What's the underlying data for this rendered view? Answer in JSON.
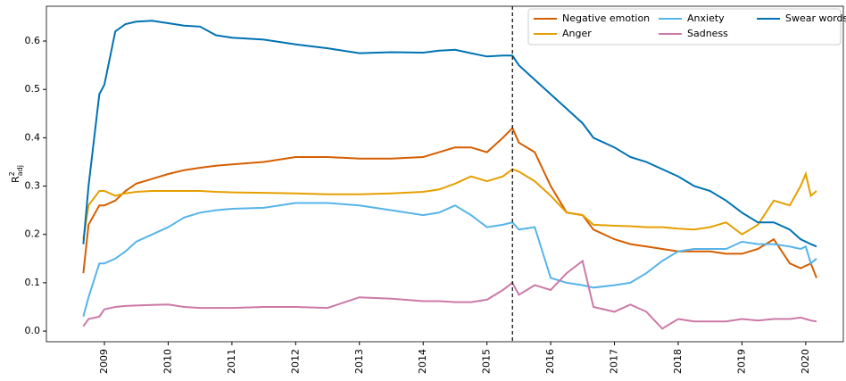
{
  "chart_data": {
    "type": "line",
    "ylabel": {
      "base": "R",
      "sup": "2",
      "sub": "adj"
    },
    "x": [
      2008.67,
      2008.75,
      2008.92,
      2009.0,
      2009.17,
      2009.33,
      2009.5,
      2009.75,
      2010,
      2010.25,
      2010.5,
      2010.75,
      2011,
      2011.5,
      2012,
      2012.5,
      2013,
      2013.5,
      2014,
      2014.25,
      2014.5,
      2014.75,
      2015,
      2015.25,
      2015.4,
      2015.5,
      2015.75,
      2016,
      2016.25,
      2016.5,
      2016.67,
      2017,
      2017.25,
      2017.5,
      2017.75,
      2018,
      2018.25,
      2018.5,
      2018.75,
      2019,
      2019.25,
      2019.5,
      2019.75,
      2019.92,
      2020,
      2020.08,
      2020.17
    ],
    "series": [
      {
        "name": "Negative emotion",
        "color": "#d55e00",
        "values": [
          0.12,
          0.22,
          0.26,
          0.26,
          0.27,
          0.29,
          0.305,
          0.315,
          0.325,
          0.333,
          0.338,
          0.342,
          0.345,
          0.35,
          0.36,
          0.36,
          0.357,
          0.357,
          0.36,
          0.37,
          0.38,
          0.38,
          0.37,
          0.4,
          0.42,
          0.39,
          0.37,
          0.3,
          0.245,
          0.24,
          0.21,
          0.19,
          0.18,
          0.175,
          0.17,
          0.165,
          0.165,
          0.165,
          0.16,
          0.16,
          0.17,
          0.19,
          0.14,
          0.13,
          0.135,
          0.14,
          0.11
        ]
      },
      {
        "name": "Anger",
        "color": "#e69f00",
        "values": [
          0.19,
          0.26,
          0.29,
          0.29,
          0.28,
          0.285,
          0.288,
          0.29,
          0.29,
          0.29,
          0.29,
          0.288,
          0.287,
          0.286,
          0.285,
          0.283,
          0.283,
          0.285,
          0.288,
          0.293,
          0.305,
          0.32,
          0.31,
          0.32,
          0.335,
          0.33,
          0.31,
          0.28,
          0.245,
          0.24,
          0.22,
          0.218,
          0.217,
          0.215,
          0.215,
          0.212,
          0.21,
          0.215,
          0.225,
          0.2,
          0.22,
          0.27,
          0.26,
          0.3,
          0.325,
          0.28,
          0.29
        ]
      },
      {
        "name": "Anxiety",
        "color": "#56b4e9",
        "values": [
          0.03,
          0.07,
          0.14,
          0.14,
          0.15,
          0.165,
          0.185,
          0.2,
          0.215,
          0.235,
          0.245,
          0.25,
          0.253,
          0.255,
          0.265,
          0.265,
          0.26,
          0.25,
          0.24,
          0.245,
          0.26,
          0.24,
          0.215,
          0.22,
          0.225,
          0.21,
          0.215,
          0.11,
          0.1,
          0.095,
          0.09,
          0.095,
          0.1,
          0.12,
          0.145,
          0.165,
          0.17,
          0.17,
          0.17,
          0.185,
          0.18,
          0.18,
          0.175,
          0.17,
          0.175,
          0.14,
          0.15
        ]
      },
      {
        "name": "Sadness",
        "color": "#cc79a7",
        "values": [
          0.01,
          0.025,
          0.03,
          0.045,
          0.05,
          0.052,
          0.053,
          0.054,
          0.055,
          0.05,
          0.048,
          0.048,
          0.048,
          0.05,
          0.05,
          0.048,
          0.07,
          0.067,
          0.062,
          0.062,
          0.06,
          0.06,
          0.065,
          0.085,
          0.1,
          0.075,
          0.095,
          0.085,
          0.12,
          0.145,
          0.05,
          0.04,
          0.055,
          0.04,
          0.005,
          0.025,
          0.02,
          0.02,
          0.02,
          0.025,
          0.022,
          0.025,
          0.025,
          0.028,
          0.025,
          0.022,
          0.02
        ]
      },
      {
        "name": "Swear words",
        "color": "#0072b2",
        "values": [
          0.18,
          0.3,
          0.49,
          0.51,
          0.62,
          0.635,
          0.64,
          0.642,
          0.637,
          0.632,
          0.63,
          0.612,
          0.607,
          0.603,
          0.593,
          0.585,
          0.575,
          0.577,
          0.576,
          0.58,
          0.582,
          0.575,
          0.568,
          0.57,
          0.57,
          0.55,
          0.52,
          0.49,
          0.46,
          0.43,
          0.4,
          0.38,
          0.36,
          0.35,
          0.335,
          0.32,
          0.3,
          0.29,
          0.27,
          0.245,
          0.225,
          0.225,
          0.21,
          0.19,
          0.185,
          0.18,
          0.175
        ]
      }
    ],
    "vline": 2015.4,
    "xlim": [
      2008.09,
      2020.59
    ],
    "xticks": [
      2009,
      2010,
      2011,
      2012,
      2013,
      2014,
      2015,
      2016,
      2017,
      2018,
      2019,
      2020
    ],
    "ylim": [
      -0.022,
      0.672
    ],
    "yticks": [
      {
        "value": 0,
        "label": "0.0"
      },
      0.1,
      0.2,
      0.3,
      0.4,
      0.5,
      0.6
    ],
    "legend": "upper right"
  }
}
